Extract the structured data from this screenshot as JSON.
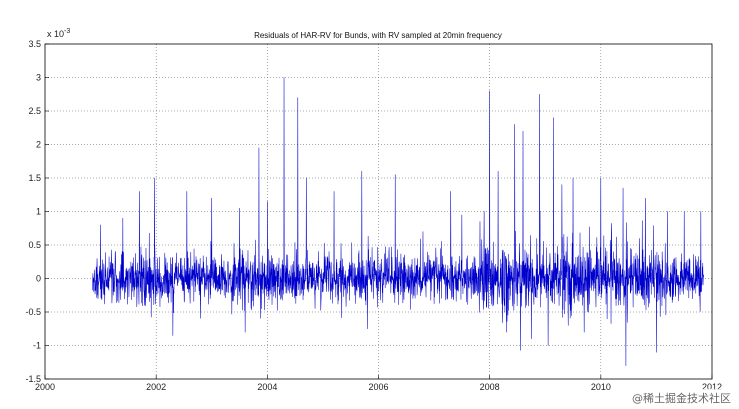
{
  "chart_data": {
    "type": "line",
    "title": "Residuals of HAR-RV for Bunds, with RV sampled at 20min frequency",
    "xlabel": "",
    "ylabel": "",
    "y_exponent_label": "x 10",
    "y_exponent_power": "-3",
    "xlim": [
      2000,
      2012
    ],
    "ylim": [
      -1.5,
      3.5
    ],
    "x_ticks": [
      {
        "value": 2000,
        "label": "2000"
      },
      {
        "value": 2002,
        "label": "2002"
      },
      {
        "value": 2004,
        "label": "2004"
      },
      {
        "value": 2006,
        "label": "2006"
      },
      {
        "value": 2008,
        "label": "2008"
      },
      {
        "value": 2010,
        "label": "2010"
      },
      {
        "value": 2012,
        "label": "2012"
      }
    ],
    "y_ticks": [
      {
        "value": 3.5,
        "label": "3.5"
      },
      {
        "value": 3,
        "label": "3"
      },
      {
        "value": 2.5,
        "label": "2.5"
      },
      {
        "value": 2,
        "label": "2"
      },
      {
        "value": 1.5,
        "label": "1.5"
      },
      {
        "value": 1,
        "label": "1"
      },
      {
        "value": 0.5,
        "label": "0.5"
      },
      {
        "value": 0,
        "label": "0"
      },
      {
        "value": -0.5,
        "label": "-0.5"
      },
      {
        "value": -1,
        "label": "-1"
      },
      {
        "value": -1.5,
        "label": "-1.5"
      }
    ],
    "grid": "dotted",
    "series_color": "#0000cc",
    "data_range": [
      2000.85,
      2011.85
    ],
    "spikes": [
      {
        "x": 2001.0,
        "y": 0.8
      },
      {
        "x": 2001.4,
        "y": 0.9
      },
      {
        "x": 2001.7,
        "y": 1.3
      },
      {
        "x": 2001.97,
        "y": 1.5
      },
      {
        "x": 2002.3,
        "y": -0.85
      },
      {
        "x": 2002.55,
        "y": 1.3
      },
      {
        "x": 2003.0,
        "y": 1.2
      },
      {
        "x": 2003.5,
        "y": 1.05
      },
      {
        "x": 2003.6,
        "y": -0.8
      },
      {
        "x": 2003.85,
        "y": 1.95
      },
      {
        "x": 2004.0,
        "y": 1.15
      },
      {
        "x": 2004.3,
        "y": 3.0
      },
      {
        "x": 2004.55,
        "y": 2.7
      },
      {
        "x": 2004.7,
        "y": 1.5
      },
      {
        "x": 2005.2,
        "y": 1.3
      },
      {
        "x": 2005.7,
        "y": 1.6
      },
      {
        "x": 2005.8,
        "y": -0.75
      },
      {
        "x": 2006.3,
        "y": 1.55
      },
      {
        "x": 2006.8,
        "y": 0.7
      },
      {
        "x": 2007.3,
        "y": 1.3
      },
      {
        "x": 2007.5,
        "y": 0.95
      },
      {
        "x": 2007.9,
        "y": 1.0
      },
      {
        "x": 2008.0,
        "y": 2.8
      },
      {
        "x": 2008.15,
        "y": 1.6
      },
      {
        "x": 2008.3,
        "y": -0.8
      },
      {
        "x": 2008.45,
        "y": 2.3
      },
      {
        "x": 2008.6,
        "y": 2.2
      },
      {
        "x": 2008.75,
        "y": -0.9
      },
      {
        "x": 2008.9,
        "y": 2.75
      },
      {
        "x": 2009.05,
        "y": -1.0
      },
      {
        "x": 2009.15,
        "y": 2.4
      },
      {
        "x": 2009.3,
        "y": 1.4
      },
      {
        "x": 2009.5,
        "y": 1.5
      },
      {
        "x": 2009.7,
        "y": -0.8
      },
      {
        "x": 2010.0,
        "y": 1.5
      },
      {
        "x": 2010.4,
        "y": 1.35
      },
      {
        "x": 2010.45,
        "y": -1.3
      },
      {
        "x": 2010.8,
        "y": 1.2
      },
      {
        "x": 2011.0,
        "y": -1.1
      },
      {
        "x": 2011.2,
        "y": 1.0
      },
      {
        "x": 2011.5,
        "y": 1.0
      },
      {
        "x": 2011.8,
        "y": 1.0
      }
    ]
  },
  "watermark": {
    "text": "@稀土掘金技术社区"
  }
}
